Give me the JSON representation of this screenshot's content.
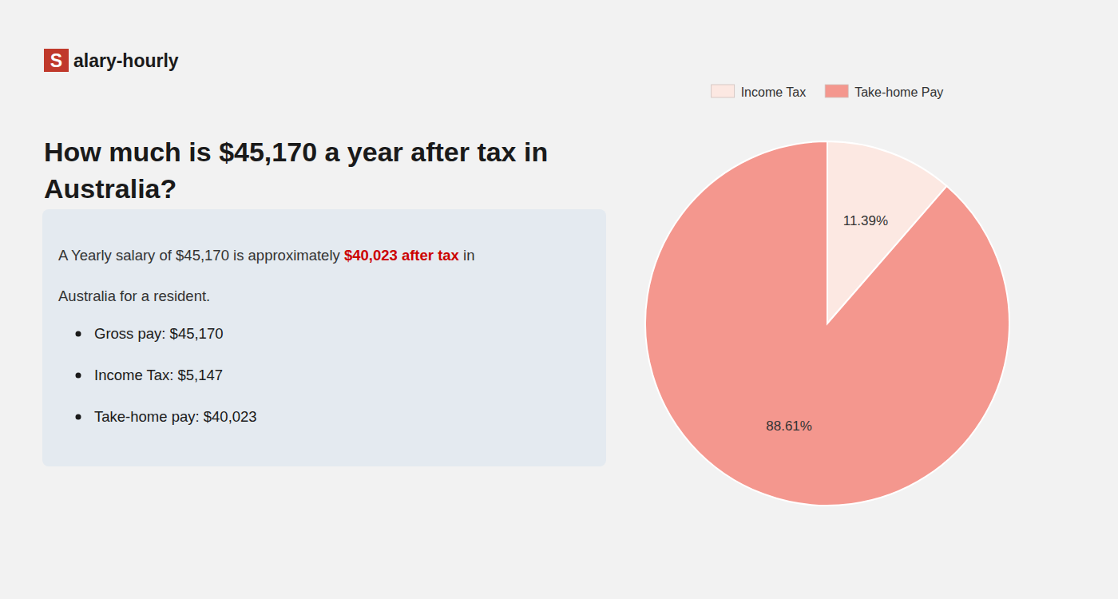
{
  "chart_data": {
    "type": "pie",
    "title": "How much is $45,170 a year after tax in\nAustralia?",
    "categories": [
      "Income Tax",
      "Take-home Pay"
    ],
    "values": [
      11.39,
      88.61
    ],
    "value_labels": [
      "11.39%",
      "88.61%"
    ],
    "colors": [
      "#fce8e2",
      "#f4978e"
    ],
    "data_labels": true,
    "legend": "top",
    "annotations": [
      {
        "text": "S",
        "color": "#c0392b"
      },
      {
        "text": "alary-hourly"
      },
      {
        "text": "A Yearly salary of $45,170 is approximately "
      },
      {
        "text": "$40,023 after tax",
        "color": "#cc0000"
      },
      {
        "text": " in"
      },
      {
        "text": "Australia for a resident."
      },
      {
        "text": "Gross pay: $45,170"
      },
      {
        "text": "Income Tax: $5,147"
      },
      {
        "text": "Take-home pay: $40,023"
      }
    ]
  }
}
